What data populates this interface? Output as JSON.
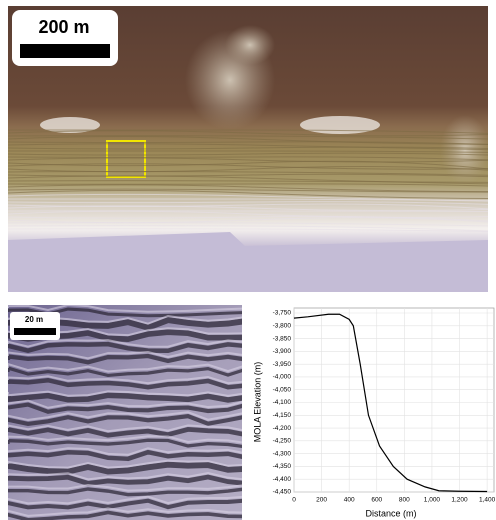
{
  "images": {
    "main": {
      "scale_label": "200 m"
    },
    "inset": {
      "scale_label": "20 m"
    }
  },
  "chart_data": {
    "type": "line",
    "y_label": "MOLA Elevation (m)",
    "x_label": "Distance (m)",
    "x": [
      0,
      100,
      250,
      330,
      400,
      430,
      480,
      540,
      620,
      720,
      820,
      950,
      1050,
      1200,
      1400
    ],
    "series": [
      {
        "name": "MOLA profile",
        "color": "#000000",
        "values": [
          -3770,
          -3765,
          -3755,
          -3755,
          -3775,
          -3800,
          -3950,
          -4150,
          -4270,
          -4350,
          -4400,
          -4430,
          -4445,
          -4447,
          -4448
        ]
      }
    ],
    "xlim": [
      0,
      1450
    ],
    "ylim": [
      -4450,
      -3750
    ],
    "xticks": [
      0,
      200,
      400,
      600,
      800,
      {
        "value": 1000,
        "label": "1,000"
      },
      {
        "value": 1200,
        "label": "1,200"
      },
      {
        "value": 1400,
        "label": "1,400"
      }
    ],
    "yticks": [
      {
        "value": -3750,
        "label": "-3,750"
      },
      {
        "value": -3800,
        "label": "-3,800"
      },
      {
        "value": -3850,
        "label": "-3,850"
      },
      {
        "value": -3900,
        "label": "-3,900"
      },
      {
        "value": -3950,
        "label": "-3,950"
      },
      {
        "value": -4000,
        "label": "-4,000"
      },
      {
        "value": -4050,
        "label": "-4,050"
      },
      {
        "value": -4100,
        "label": "-4,100"
      },
      {
        "value": -4150,
        "label": "-4,150"
      },
      {
        "value": -4200,
        "label": "-4,200"
      },
      {
        "value": -4250,
        "label": "-4,250"
      },
      {
        "value": -4300,
        "label": "-4,300"
      },
      {
        "value": -4350,
        "label": "-4,350"
      },
      {
        "value": -4400,
        "label": "-4,400"
      },
      {
        "value": -4450,
        "label": "-4,450"
      }
    ],
    "grid": true
  }
}
